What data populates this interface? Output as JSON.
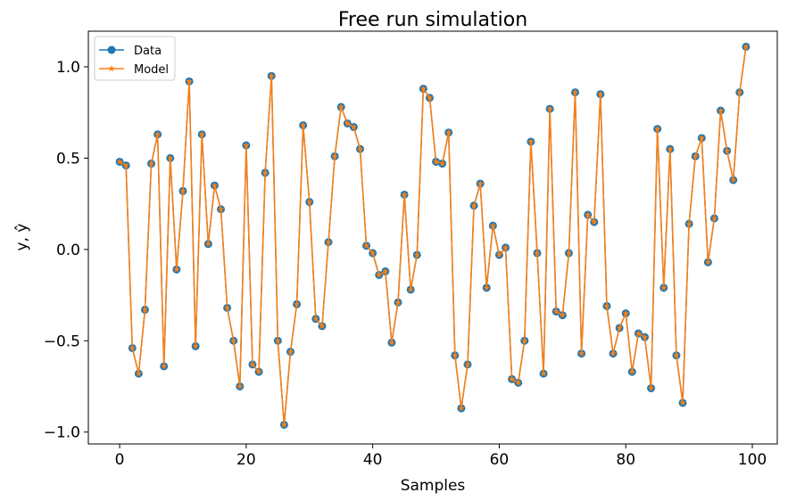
{
  "chart_data": {
    "type": "line",
    "title": "Free run simulation",
    "xlabel": "Samples",
    "ylabel": "y, ŷ",
    "xlim": [
      -4.95,
      103.95
    ],
    "ylim": [
      -1.065,
      1.195
    ],
    "xticks": [
      0,
      20,
      40,
      60,
      80,
      100
    ],
    "xtick_labels": [
      "0",
      "20",
      "40",
      "60",
      "80",
      "100"
    ],
    "yticks": [
      -1.0,
      -0.5,
      0.0,
      0.5,
      1.0
    ],
    "ytick_labels": [
      "−1.0",
      "−0.5",
      "0.0",
      "0.5",
      "1.0"
    ],
    "grid": false,
    "legend_position": "top-left",
    "x": [
      0,
      1,
      2,
      3,
      4,
      5,
      6,
      7,
      8,
      9,
      10,
      11,
      12,
      13,
      14,
      15,
      16,
      17,
      18,
      19,
      20,
      21,
      22,
      23,
      24,
      25,
      26,
      27,
      28,
      29,
      30,
      31,
      32,
      33,
      34,
      35,
      36,
      37,
      38,
      39,
      40,
      41,
      42,
      43,
      44,
      45,
      46,
      47,
      48,
      49,
      50,
      51,
      52,
      53,
      54,
      55,
      56,
      57,
      58,
      59,
      60,
      61,
      62,
      63,
      64,
      65,
      66,
      67,
      68,
      69,
      70,
      71,
      72,
      73,
      74,
      75,
      76,
      77,
      78,
      79,
      80,
      81,
      82,
      83,
      84,
      85,
      86,
      87,
      88,
      89,
      90,
      91,
      92,
      93,
      94,
      95,
      96,
      97,
      98,
      99
    ],
    "series": [
      {
        "name": "Data",
        "color": "#1f77b4",
        "marker": "circle",
        "values": [
          0.48,
          0.46,
          -0.54,
          -0.68,
          -0.33,
          0.47,
          0.63,
          -0.64,
          0.5,
          -0.11,
          0.32,
          0.92,
          -0.53,
          0.63,
          0.03,
          0.35,
          0.22,
          -0.32,
          -0.5,
          -0.75,
          0.57,
          -0.63,
          -0.67,
          0.42,
          0.95,
          -0.5,
          -0.96,
          -0.56,
          -0.3,
          0.68,
          0.26,
          -0.38,
          -0.42,
          0.04,
          0.51,
          0.78,
          0.69,
          0.67,
          0.55,
          0.02,
          -0.02,
          -0.14,
          -0.12,
          -0.51,
          -0.29,
          0.3,
          -0.22,
          -0.03,
          0.88,
          0.83,
          0.48,
          0.47,
          0.64,
          -0.58,
          -0.87,
          -0.63,
          0.24,
          0.36,
          -0.21,
          0.13,
          -0.03,
          0.01,
          -0.71,
          -0.73,
          -0.5,
          0.59,
          -0.02,
          -0.68,
          0.77,
          -0.34,
          -0.36,
          -0.02,
          0.86,
          -0.57,
          0.19,
          0.15,
          0.85,
          -0.31,
          -0.57,
          -0.43,
          -0.35,
          -0.67,
          -0.46,
          -0.48,
          -0.76,
          0.66,
          -0.21,
          0.55,
          -0.58,
          -0.84,
          0.14,
          0.51,
          0.61,
          -0.07,
          0.17,
          0.76,
          0.54,
          0.38,
          0.86,
          1.11
        ]
      },
      {
        "name": "Model",
        "color": "#ff7f0e",
        "marker": "star",
        "values": [
          0.48,
          0.46,
          -0.54,
          -0.68,
          -0.33,
          0.47,
          0.63,
          -0.64,
          0.5,
          -0.11,
          0.32,
          0.92,
          -0.53,
          0.63,
          0.03,
          0.35,
          0.22,
          -0.32,
          -0.5,
          -0.75,
          0.57,
          -0.63,
          -0.67,
          0.42,
          0.95,
          -0.5,
          -0.96,
          -0.56,
          -0.3,
          0.68,
          0.26,
          -0.38,
          -0.42,
          0.04,
          0.51,
          0.78,
          0.69,
          0.67,
          0.55,
          0.02,
          -0.02,
          -0.14,
          -0.12,
          -0.51,
          -0.29,
          0.3,
          -0.22,
          -0.03,
          0.88,
          0.83,
          0.48,
          0.47,
          0.64,
          -0.58,
          -0.87,
          -0.63,
          0.24,
          0.36,
          -0.21,
          0.13,
          -0.03,
          0.01,
          -0.71,
          -0.73,
          -0.5,
          0.59,
          -0.02,
          -0.68,
          0.77,
          -0.34,
          -0.36,
          -0.02,
          0.86,
          -0.57,
          0.19,
          0.15,
          0.85,
          -0.31,
          -0.57,
          -0.43,
          -0.35,
          -0.67,
          -0.46,
          -0.48,
          -0.76,
          0.66,
          -0.21,
          0.55,
          -0.58,
          -0.84,
          0.14,
          0.51,
          0.61,
          -0.07,
          0.17,
          0.76,
          0.54,
          0.38,
          0.86,
          1.11
        ]
      }
    ]
  }
}
